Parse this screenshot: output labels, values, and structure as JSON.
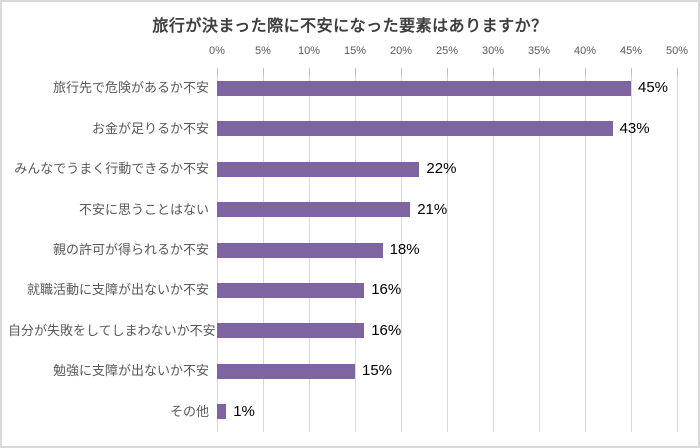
{
  "title": "旅行が決まった際に不安になった要素はありますか？",
  "colors": {
    "bar": "#7E64A1",
    "gridline": "#D9D9D9",
    "tick": "#BFBFBF",
    "axis_text": "#595959",
    "category_text": "#595959",
    "value_text": "#000000",
    "title_text": "#3F3F3F",
    "frame_border": "#D9D9D9",
    "background": "#FFFFFF"
  },
  "chart_data": {
    "type": "bar",
    "orientation": "horizontal",
    "title": "旅行が決まった際に不安になった要素はありますか？",
    "categories": [
      "旅行先で危険があるか不安",
      "お金が足りるか不安",
      "みんなでうまく行動できるか不安",
      "不安に思うことはない",
      "親の許可が得られるか不安",
      "就職活動に支障が出ないか不安",
      "自分が失敗をしてしまわないか不安",
      "勉強に支障が出ないか不安",
      "その他"
    ],
    "values": [
      45,
      43,
      22,
      21,
      18,
      16,
      16,
      15,
      1
    ],
    "data_labels": [
      "45%",
      "43%",
      "22%",
      "21%",
      "18%",
      "16%",
      "16%",
      "15%",
      "1%"
    ],
    "xlabel": "",
    "ylabel": "",
    "axis": {
      "position": "top",
      "min": 0,
      "max": 50,
      "step": 5,
      "tick_labels": [
        "0%",
        "5%",
        "10%",
        "15%",
        "20%",
        "25%",
        "30%",
        "35%",
        "40%",
        "45%",
        "50%"
      ]
    },
    "grid": true,
    "legend": false
  }
}
